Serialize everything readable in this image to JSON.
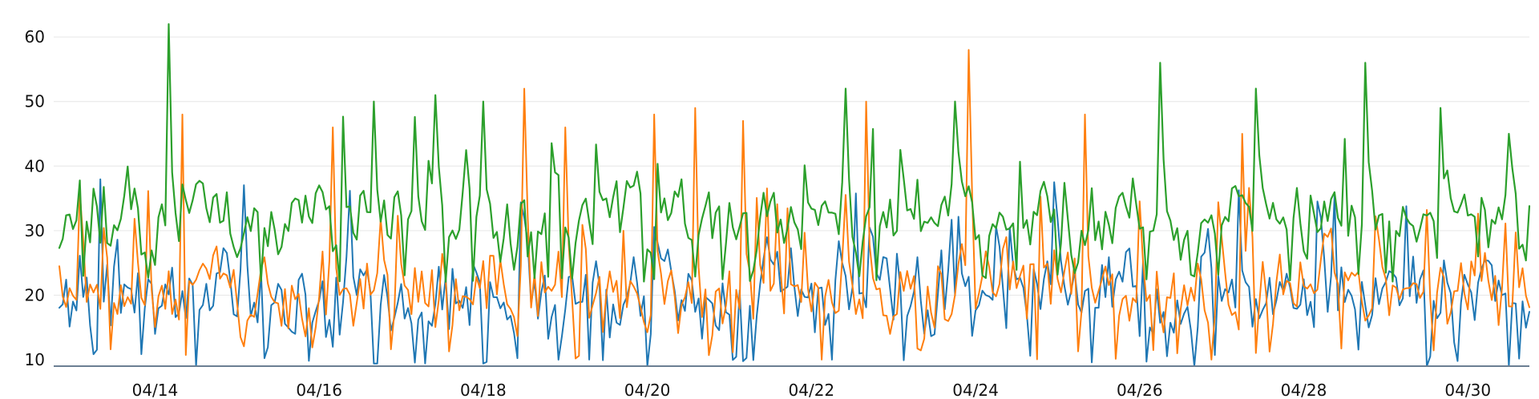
{
  "chart_data": {
    "type": "line",
    "title": "",
    "xlabel": "",
    "ylabel": "",
    "grid": true,
    "legend": "none",
    "x_ticks": [
      "04/14",
      "04/16",
      "04/18",
      "04/20",
      "04/22",
      "04/24",
      "04/26",
      "04/28",
      "04/30"
    ],
    "y_ticks": [
      "10",
      "20",
      "30",
      "40",
      "50",
      "60"
    ],
    "x_range": [
      "2025-04-12T20:00",
      "2025-04-30T18:00"
    ],
    "ylim": [
      9,
      63
    ],
    "sampling": "hourly",
    "series": [
      {
        "color": "#1f77b4",
        "base_min": 11,
        "base_max": 30,
        "highlights": [
          {
            "date": "2025-04-14T00:00",
            "value": 14
          },
          {
            "date": "2025-04-14T12:00",
            "value": 9
          },
          {
            "date": "2025-04-16T04:00",
            "value": 12
          },
          {
            "date": "2025-04-18T22:00",
            "value": 10
          },
          {
            "date": "2025-04-20T00:00",
            "value": 9
          },
          {
            "date": "2025-04-22T06:00",
            "value": 10
          },
          {
            "date": "2025-04-26T16:00",
            "value": 9
          },
          {
            "date": "2025-04-29T12:00",
            "value": 9
          },
          {
            "date": "2025-04-30T12:00",
            "value": 9
          }
        ]
      },
      {
        "color": "#ff7f0e",
        "base_min": 12,
        "base_max": 29,
        "highlights": [
          {
            "date": "2025-04-14T08:00",
            "value": 48
          },
          {
            "date": "2025-04-16T04:00",
            "value": 46
          },
          {
            "date": "2025-04-18T12:00",
            "value": 52
          },
          {
            "date": "2025-04-19T00:00",
            "value": 46
          },
          {
            "date": "2025-04-20T02:00",
            "value": 48
          },
          {
            "date": "2025-04-20T14:00",
            "value": 49
          },
          {
            "date": "2025-04-21T04:00",
            "value": 47
          },
          {
            "date": "2025-04-22T16:00",
            "value": 50
          },
          {
            "date": "2025-04-23T22:00",
            "value": 58
          },
          {
            "date": "2025-04-25T08:00",
            "value": 48
          },
          {
            "date": "2025-04-27T06:00",
            "value": 45
          }
        ]
      },
      {
        "color": "#2ca02c",
        "base_min": 24,
        "base_max": 40,
        "highlights": [
          {
            "date": "2025-04-14T04:00",
            "value": 62
          },
          {
            "date": "2025-04-16T16:00",
            "value": 50
          },
          {
            "date": "2025-04-17T10:00",
            "value": 51
          },
          {
            "date": "2025-04-18T00:00",
            "value": 50
          },
          {
            "date": "2025-04-22T10:00",
            "value": 52
          },
          {
            "date": "2025-04-23T18:00",
            "value": 50
          },
          {
            "date": "2025-04-26T06:00",
            "value": 56
          },
          {
            "date": "2025-04-27T10:00",
            "value": 52
          },
          {
            "date": "2025-04-28T18:00",
            "value": 56
          },
          {
            "date": "2025-04-29T16:00",
            "value": 49
          },
          {
            "date": "2025-04-30T12:00",
            "value": 45
          }
        ]
      }
    ]
  }
}
